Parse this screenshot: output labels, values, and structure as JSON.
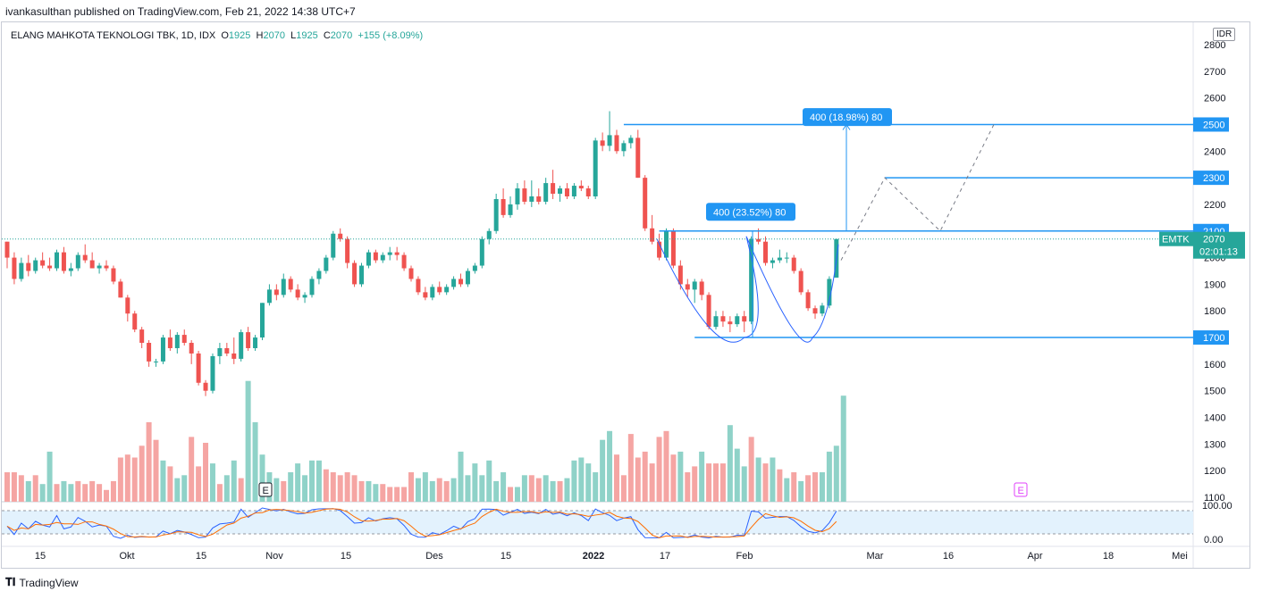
{
  "published": "ivankasulthan published on TradingView.com, Feb 21, 2022 14:38 UTC+7",
  "legend": {
    "title": "ELANG MAHKOTA TEKNOLOGI TBK, 1D, IDX",
    "o_label": "O",
    "o": "1925",
    "h_label": "H",
    "h": "2070",
    "l_label": "L",
    "l": "1925",
    "c_label": "C",
    "c": "2070",
    "change": "+155 (+8.09%)"
  },
  "currency": "IDR",
  "footer_brand": "TradingView",
  "colors": {
    "up": "#26a69a",
    "down": "#ef5350",
    "vol_up": "#8fd2c8",
    "vol_down": "#f5a5a3",
    "pattern": "#2962ff",
    "tool": "#2196f3"
  },
  "chart_data": {
    "type": "candlestick",
    "symbol": "EMTK",
    "price_axis": {
      "min": 1100,
      "max": 2800,
      "ticks": [
        "1100",
        "1200",
        "1300",
        "1400",
        "1500",
        "1600",
        "1700",
        "1800",
        "1900",
        "2000",
        "2100",
        "2200",
        "2300",
        "2400",
        "2500",
        "2600",
        "2700",
        "2800"
      ]
    },
    "x_ticks": [
      "15",
      "Okt",
      "15",
      "Nov",
      "15",
      "Des",
      "15",
      "2022",
      "17",
      "Feb",
      "Mar",
      "16",
      "Apr",
      "18",
      "Mei"
    ],
    "last_price": {
      "symbol": "EMTK",
      "value": "2070",
      "countdown": "02:01:13"
    },
    "levels": [
      {
        "value": 2500,
        "label": "2500"
      },
      {
        "value": 2300,
        "label": "2300"
      },
      {
        "value": 2100,
        "label": "2100"
      },
      {
        "value": 1700,
        "label": "1700"
      }
    ],
    "measurements": [
      {
        "label": "400 (18.98%) 80",
        "from": 2100,
        "to": 2500
      },
      {
        "label": "400 (23.52%) 80",
        "from": 1700,
        "to": 2100
      }
    ],
    "earnings_markers": [
      "E",
      "E"
    ],
    "oscillator": {
      "ticks": [
        "100.00",
        "0.00"
      ],
      "upper": 80,
      "lower": 20
    },
    "candles": [
      [
        2060,
        2060,
        1960,
        2000
      ],
      [
        2000,
        2020,
        1900,
        1920
      ],
      [
        1920,
        2000,
        1910,
        1980
      ],
      [
        1980,
        2010,
        1930,
        1950
      ],
      [
        1950,
        2000,
        1940,
        1990
      ],
      [
        1990,
        2020,
        1960,
        1970
      ],
      [
        1970,
        2000,
        1950,
        1960
      ],
      [
        1960,
        2030,
        1950,
        2020
      ],
      [
        2020,
        2040,
        1940,
        1950
      ],
      [
        1950,
        1980,
        1930,
        1960
      ],
      [
        1960,
        2020,
        1950,
        2010
      ],
      [
        2010,
        2050,
        1980,
        1990
      ],
      [
        1990,
        2020,
        1960,
        1960
      ],
      [
        1960,
        1980,
        1940,
        1970
      ],
      [
        1970,
        1990,
        1950,
        1960
      ],
      [
        1960,
        1970,
        1900,
        1910
      ],
      [
        1910,
        1920,
        1850,
        1850
      ],
      [
        1850,
        1860,
        1760,
        1790
      ],
      [
        1790,
        1800,
        1720,
        1730
      ],
      [
        1730,
        1740,
        1660,
        1680
      ],
      [
        1680,
        1690,
        1590,
        1610
      ],
      [
        1610,
        1620,
        1590,
        1610
      ],
      [
        1610,
        1710,
        1600,
        1700
      ],
      [
        1700,
        1730,
        1650,
        1660
      ],
      [
        1660,
        1720,
        1640,
        1710
      ],
      [
        1710,
        1730,
        1670,
        1680
      ],
      [
        1680,
        1690,
        1600,
        1640
      ],
      [
        1640,
        1650,
        1520,
        1530
      ],
      [
        1530,
        1540,
        1480,
        1500
      ],
      [
        1500,
        1640,
        1490,
        1630
      ],
      [
        1630,
        1680,
        1600,
        1660
      ],
      [
        1660,
        1680,
        1630,
        1640
      ],
      [
        1640,
        1700,
        1600,
        1620
      ],
      [
        1620,
        1730,
        1610,
        1720
      ],
      [
        1720,
        1740,
        1650,
        1660
      ],
      [
        1660,
        1710,
        1650,
        1700
      ],
      [
        1700,
        1830,
        1690,
        1830
      ],
      [
        1830,
        1900,
        1820,
        1880
      ],
      [
        1880,
        1900,
        1840,
        1860
      ],
      [
        1860,
        1940,
        1850,
        1920
      ],
      [
        1920,
        1930,
        1870,
        1880
      ],
      [
        1880,
        1900,
        1840,
        1850
      ],
      [
        1850,
        1870,
        1830,
        1860
      ],
      [
        1860,
        1930,
        1850,
        1920
      ],
      [
        1920,
        1960,
        1900,
        1950
      ],
      [
        1950,
        2010,
        1940,
        2000
      ],
      [
        2000,
        2100,
        1990,
        2090
      ],
      [
        2090,
        2110,
        2060,
        2070
      ],
      [
        2070,
        2080,
        1960,
        1980
      ],
      [
        1980,
        1990,
        1890,
        1900
      ],
      [
        1900,
        1980,
        1890,
        1970
      ],
      [
        1970,
        2030,
        1960,
        2020
      ],
      [
        2020,
        2030,
        1980,
        1990
      ],
      [
        1990,
        2020,
        1980,
        2010
      ],
      [
        2010,
        2040,
        1990,
        2020
      ],
      [
        2020,
        2040,
        1990,
        2010
      ],
      [
        2010,
        2020,
        1950,
        1960
      ],
      [
        1960,
        1970,
        1910,
        1920
      ],
      [
        1920,
        1930,
        1860,
        1870
      ],
      [
        1870,
        1890,
        1840,
        1850
      ],
      [
        1850,
        1900,
        1840,
        1890
      ],
      [
        1890,
        1910,
        1860,
        1870
      ],
      [
        1870,
        1900,
        1860,
        1890
      ],
      [
        1890,
        1930,
        1880,
        1920
      ],
      [
        1920,
        1940,
        1890,
        1900
      ],
      [
        1900,
        1960,
        1890,
        1950
      ],
      [
        1950,
        1980,
        1940,
        1970
      ],
      [
        1970,
        2080,
        1960,
        2070
      ],
      [
        2070,
        2110,
        2050,
        2100
      ],
      [
        2100,
        2240,
        2090,
        2220
      ],
      [
        2220,
        2260,
        2150,
        2160
      ],
      [
        2160,
        2230,
        2150,
        2200
      ],
      [
        2200,
        2280,
        2180,
        2260
      ],
      [
        2260,
        2290,
        2200,
        2210
      ],
      [
        2210,
        2290,
        2190,
        2230
      ],
      [
        2230,
        2260,
        2200,
        2210
      ],
      [
        2210,
        2300,
        2200,
        2280
      ],
      [
        2280,
        2330,
        2220,
        2240
      ],
      [
        2240,
        2270,
        2210,
        2260
      ],
      [
        2260,
        2280,
        2220,
        2230
      ],
      [
        2230,
        2280,
        2220,
        2270
      ],
      [
        2270,
        2290,
        2250,
        2260
      ],
      [
        2260,
        2270,
        2220,
        2230
      ],
      [
        2230,
        2450,
        2220,
        2440
      ],
      [
        2440,
        2470,
        2400,
        2420
      ],
      [
        2420,
        2550,
        2400,
        2460
      ],
      [
        2460,
        2480,
        2390,
        2400
      ],
      [
        2400,
        2440,
        2380,
        2430
      ],
      [
        2430,
        2460,
        2410,
        2450
      ],
      [
        2450,
        2480,
        2300,
        2300
      ],
      [
        2300,
        2310,
        2100,
        2110
      ],
      [
        2110,
        2160,
        2050,
        2060
      ],
      [
        2060,
        2090,
        1990,
        2000
      ],
      [
        2000,
        2110,
        1990,
        2100
      ],
      [
        2100,
        2110,
        1960,
        1970
      ],
      [
        1970,
        1990,
        1880,
        1900
      ],
      [
        1900,
        1920,
        1850,
        1880
      ],
      [
        1880,
        1920,
        1830,
        1910
      ],
      [
        1910,
        1920,
        1840,
        1860
      ],
      [
        1860,
        1870,
        1730,
        1740
      ],
      [
        1740,
        1800,
        1730,
        1780
      ],
      [
        1780,
        1800,
        1740,
        1760
      ],
      [
        1760,
        1780,
        1720,
        1750
      ],
      [
        1750,
        1790,
        1740,
        1780
      ],
      [
        1780,
        1800,
        1720,
        1760
      ],
      [
        1760,
        2080,
        1750,
        2070
      ],
      [
        2070,
        2110,
        2050,
        2060
      ],
      [
        2060,
        2080,
        1970,
        1980
      ],
      [
        1980,
        2000,
        1960,
        1990
      ],
      [
        1990,
        2030,
        1980,
        2000
      ],
      [
        2000,
        2020,
        1980,
        2000
      ],
      [
        2000,
        2010,
        1940,
        1950
      ],
      [
        1950,
        1960,
        1860,
        1870
      ],
      [
        1870,
        1880,
        1800,
        1810
      ],
      [
        1810,
        1820,
        1770,
        1790
      ],
      [
        1790,
        1830,
        1780,
        1820
      ],
      [
        1820,
        1930,
        1810,
        1920
      ],
      [
        1925,
        2070,
        1925,
        2070
      ]
    ],
    "volumes": [
      [
        0.1,
        0
      ],
      [
        0.1,
        0
      ],
      [
        0.09,
        0
      ],
      [
        0.07,
        1
      ],
      [
        0.09,
        0
      ],
      [
        0.06,
        1
      ],
      [
        0.17,
        1
      ],
      [
        0.06,
        0
      ],
      [
        0.07,
        1
      ],
      [
        0.06,
        1
      ],
      [
        0.07,
        0
      ],
      [
        0.06,
        0
      ],
      [
        0.07,
        0
      ],
      [
        0.06,
        0
      ],
      [
        0.04,
        0
      ],
      [
        0.07,
        0
      ],
      [
        0.15,
        0
      ],
      [
        0.16,
        0
      ],
      [
        0.15,
        0
      ],
      [
        0.19,
        0
      ],
      [
        0.27,
        0
      ],
      [
        0.21,
        0
      ],
      [
        0.14,
        1
      ],
      [
        0.12,
        0
      ],
      [
        0.08,
        1
      ],
      [
        0.09,
        1
      ],
      [
        0.22,
        0
      ],
      [
        0.12,
        0
      ],
      [
        0.2,
        0
      ],
      [
        0.13,
        1
      ],
      [
        0.06,
        0
      ],
      [
        0.09,
        1
      ],
      [
        0.14,
        1
      ],
      [
        0.08,
        0
      ],
      [
        0.41,
        1
      ],
      [
        0.27,
        1
      ],
      [
        0.16,
        1
      ],
      [
        0.1,
        1
      ],
      [
        0.08,
        1
      ],
      [
        0.07,
        0
      ],
      [
        0.1,
        1
      ],
      [
        0.13,
        1
      ],
      [
        0.09,
        1
      ],
      [
        0.14,
        1
      ],
      [
        0.14,
        1
      ],
      [
        0.11,
        0
      ],
      [
        0.1,
        0
      ],
      [
        0.09,
        0
      ],
      [
        0.1,
        0
      ],
      [
        0.09,
        0
      ],
      [
        0.07,
        0
      ],
      [
        0.07,
        1
      ],
      [
        0.06,
        1
      ],
      [
        0.06,
        0
      ],
      [
        0.05,
        0
      ],
      [
        0.05,
        0
      ],
      [
        0.05,
        0
      ],
      [
        0.1,
        0
      ],
      [
        0.08,
        1
      ],
      [
        0.1,
        1
      ],
      [
        0.07,
        1
      ],
      [
        0.08,
        0
      ],
      [
        0.07,
        0
      ],
      [
        0.08,
        1
      ],
      [
        0.17,
        1
      ],
      [
        0.09,
        1
      ],
      [
        0.13,
        1
      ],
      [
        0.09,
        1
      ],
      [
        0.14,
        1
      ],
      [
        0.07,
        1
      ],
      [
        0.1,
        1
      ],
      [
        0.05,
        0
      ],
      [
        0.05,
        1
      ],
      [
        0.09,
        1
      ],
      [
        0.09,
        0
      ],
      [
        0.08,
        0
      ],
      [
        0.09,
        1
      ],
      [
        0.07,
        1
      ],
      [
        0.07,
        0
      ],
      [
        0.08,
        1
      ],
      [
        0.14,
        1
      ],
      [
        0.15,
        1
      ],
      [
        0.13,
        1
      ],
      [
        0.1,
        1
      ],
      [
        0.21,
        1
      ],
      [
        0.24,
        1
      ],
      [
        0.16,
        0
      ],
      [
        0.09,
        0
      ],
      [
        0.23,
        0
      ],
      [
        0.15,
        0
      ],
      [
        0.17,
        0
      ],
      [
        0.13,
        0
      ],
      [
        0.22,
        0
      ],
      [
        0.24,
        0
      ],
      [
        0.16,
        0
      ],
      [
        0.17,
        1
      ],
      [
        0.1,
        0
      ],
      [
        0.12,
        0
      ],
      [
        0.17,
        1
      ],
      [
        0.13,
        0
      ],
      [
        0.13,
        0
      ],
      [
        0.13,
        0
      ],
      [
        0.26,
        1
      ],
      [
        0.18,
        1
      ],
      [
        0.12,
        1
      ],
      [
        0.22,
        0
      ],
      [
        0.15,
        1
      ],
      [
        0.13,
        0
      ],
      [
        0.15,
        1
      ],
      [
        0.11,
        0
      ],
      [
        0.08,
        1
      ],
      [
        0.1,
        0
      ],
      [
        0.07,
        1
      ],
      [
        0.09,
        0
      ],
      [
        0.1,
        0
      ],
      [
        0.1,
        1
      ],
      [
        0.17,
        1
      ],
      [
        0.19,
        1
      ],
      [
        0.36,
        1
      ]
    ]
  }
}
